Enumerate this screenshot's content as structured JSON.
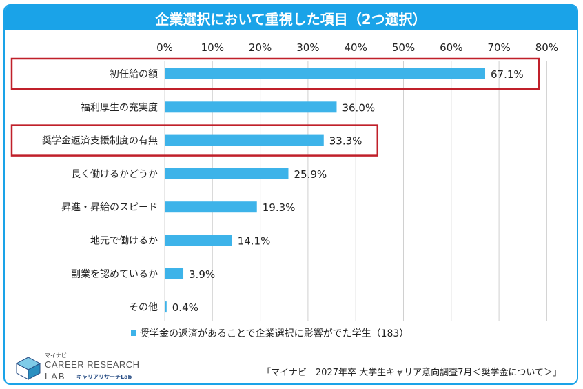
{
  "page": {
    "title": "企業選択において重視した項目（2つ選択）",
    "source": "「マイナビ　2027年卒 大学生キャリア意向調査7月＜奨学金について＞」",
    "brand": {
      "small": "マイナビ",
      "main": "CAREER RESEARCH",
      "lab": "LAB",
      "sub": "キャリアリサーチLab"
    }
  },
  "colors": {
    "bar": "#3db3e9",
    "title_bg": "#1aa3e8",
    "highlight_border": "#c0202a",
    "grid": "#d0d0d0"
  },
  "chart_data": {
    "type": "bar",
    "orientation": "horizontal",
    "title": "企業選択において重視した項目（2つ選択）",
    "categories": [
      "初任給の額",
      "福利厚生の充実度",
      "奨学金返済支援制度の有無",
      "長く働けるかどうか",
      "昇進・昇給のスピード",
      "地元で働けるか",
      "副業を認めているか",
      "その他"
    ],
    "series": [
      {
        "name": "奨学金の返済があることで企業選択に影響がでた学生（183）",
        "values": [
          67.1,
          36.0,
          33.3,
          25.9,
          19.3,
          14.1,
          3.9,
          0.4
        ]
      }
    ],
    "data_labels": [
      "67.1%",
      "36.0%",
      "33.3%",
      "25.9%",
      "19.3%",
      "14.1%",
      "3.9%",
      "0.4%"
    ],
    "x_ticks": [
      "0%",
      "10%",
      "20%",
      "30%",
      "40%",
      "50%",
      "60%",
      "70%",
      "80%"
    ],
    "xlim": [
      0,
      80
    ],
    "axis_position": "top",
    "grid": true,
    "legend_position": "bottom",
    "highlighted_categories": [
      "初任給の額",
      "奨学金返済支援制度の有無"
    ]
  }
}
